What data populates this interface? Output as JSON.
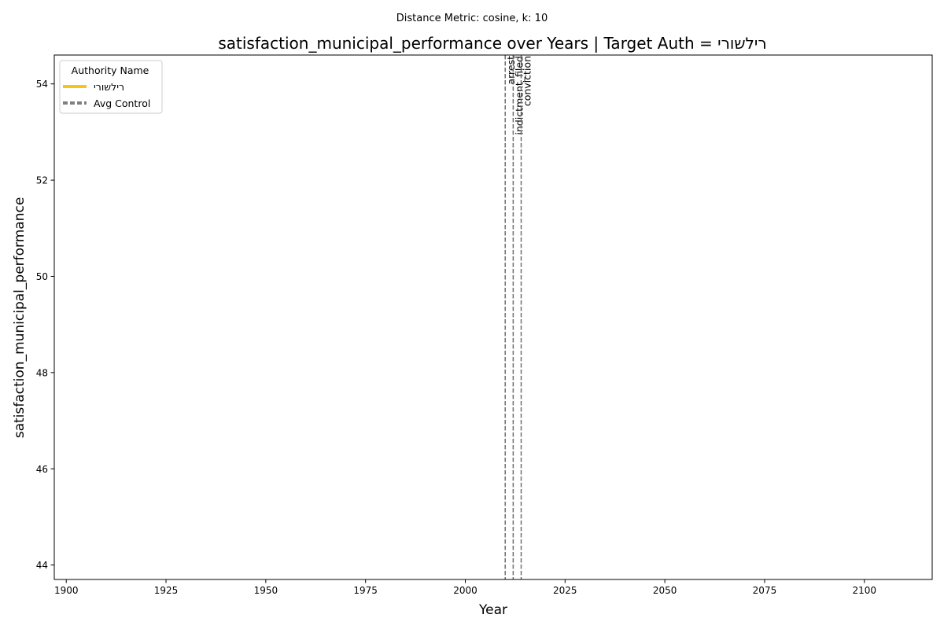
{
  "chart_data": {
    "type": "line",
    "suptitle": "Distance Metric: cosine, k: 10",
    "title": "satisfaction_municipal_performance over Years | Target Auth = רילשורי",
    "xlabel": "Year",
    "ylabel": "satisfaction_municipal_performance",
    "xlim": [
      1897,
      2117
    ],
    "ylim": [
      43.7,
      54.6
    ],
    "xticks": [
      1900,
      1925,
      1950,
      1975,
      2000,
      2025,
      2050,
      2075,
      2100
    ],
    "yticks": [
      44,
      46,
      48,
      50,
      52,
      54
    ],
    "grid": false,
    "series": [
      {
        "name": "רילשורי",
        "values": [],
        "color": "#f5c518",
        "style": "solid"
      },
      {
        "name": "Avg Control",
        "values": [],
        "color": "#808080",
        "style": "dashed"
      }
    ],
    "events": [
      {
        "x": 2010,
        "label": "arrest"
      },
      {
        "x": 2012,
        "label": "indictment_filed"
      },
      {
        "x": 2014,
        "label": "conviction"
      }
    ],
    "event_line_color": "#6e6e6e",
    "legend": {
      "title": "Authority Name",
      "placement": "top-left"
    }
  }
}
